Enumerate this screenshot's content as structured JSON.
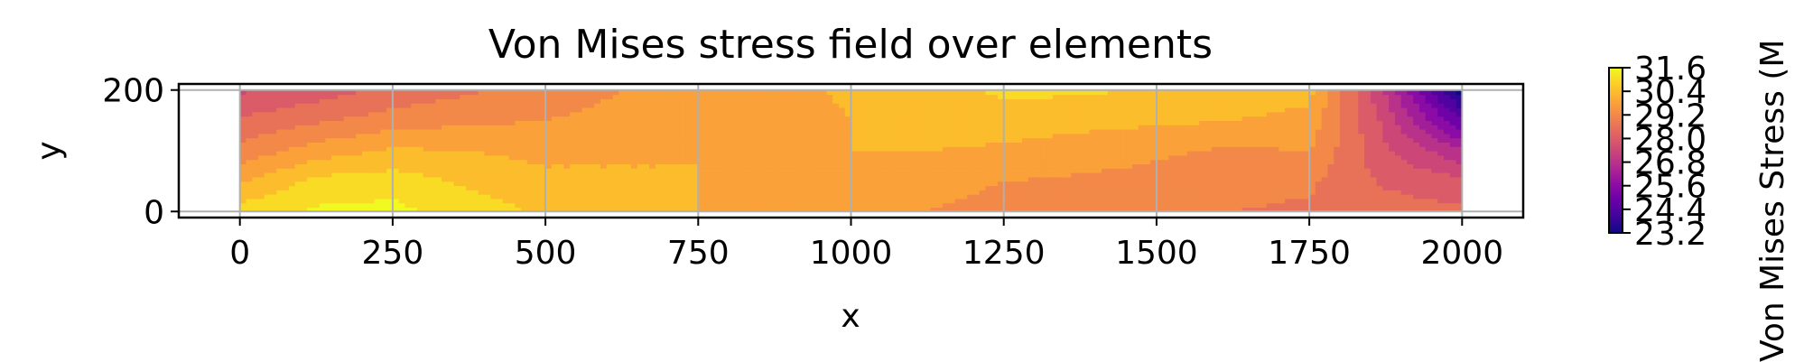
{
  "chart_data": {
    "type": "heatmap",
    "title": "Von Mises stress field over elements",
    "xlabel": "x",
    "ylabel": "y",
    "xlim": [
      -100,
      2100
    ],
    "ylim": [
      -10,
      210
    ],
    "data_extent": {
      "x": [
        0,
        2000
      ],
      "y": [
        0,
        200
      ]
    },
    "xticks": [
      0,
      250,
      500,
      750,
      1000,
      1250,
      1500,
      1750,
      2000
    ],
    "yticks": [
      0,
      200
    ],
    "grid": true,
    "colormap": "plasma",
    "colorbar": {
      "label": "Von Mises Stress (M",
      "ticks": [
        23.2,
        24.4,
        25.6,
        26.8,
        28.0,
        29.2,
        30.4,
        31.6
      ],
      "tick_labels": [
        "23.2",
        "24.4",
        "25.6",
        "26.8",
        "28.0",
        "29.2",
        "30.4",
        "31.6"
      ],
      "range": [
        23.2,
        31.6
      ]
    },
    "grid_x": [
      0,
      125,
      250,
      375,
      500,
      625,
      750,
      875,
      1000,
      1125,
      1250,
      1375,
      1500,
      1625,
      1750,
      1875,
      2000
    ],
    "grid_y": [
      0,
      50,
      100,
      150,
      200
    ],
    "values": [
      [
        31.0,
        31.4,
        31.5,
        31.0,
        30.6,
        30.3,
        30.1,
        29.9,
        29.7,
        29.5,
        29.3,
        29.2,
        29.0,
        28.9,
        28.8,
        28.6,
        28.4
      ],
      [
        30.0,
        30.9,
        31.0,
        30.6,
        30.3,
        30.2,
        30.1,
        30.0,
        29.9,
        29.7,
        29.5,
        29.4,
        29.3,
        29.1,
        29.0,
        28.2,
        27.9
      ],
      [
        29.1,
        29.8,
        30.2,
        30.1,
        29.9,
        30.0,
        30.1,
        30.0,
        30.1,
        30.1,
        30.0,
        29.8,
        29.6,
        29.4,
        29.5,
        27.8,
        26.6
      ],
      [
        28.4,
        28.8,
        29.2,
        29.4,
        29.5,
        29.7,
        29.8,
        29.8,
        30.1,
        30.3,
        30.4,
        30.3,
        30.2,
        30.1,
        29.9,
        27.5,
        24.7
      ],
      [
        27.6,
        28.0,
        28.5,
        28.8,
        29.2,
        29.5,
        29.7,
        29.9,
        30.2,
        30.5,
        30.8,
        30.8,
        30.6,
        30.5,
        30.3,
        27.0,
        23.2
      ]
    ]
  }
}
